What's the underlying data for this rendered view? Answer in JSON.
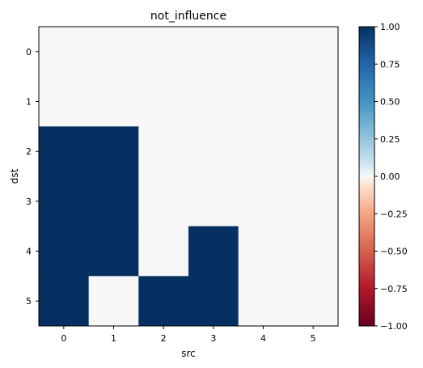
{
  "chart_data": {
    "type": "heatmap",
    "title": "not_influence",
    "xlabel": "src",
    "ylabel": "dst",
    "x_categories": [
      "0",
      "1",
      "2",
      "3",
      "4",
      "5"
    ],
    "y_categories": [
      "0",
      "1",
      "2",
      "3",
      "4",
      "5"
    ],
    "values": [
      [
        0,
        0,
        0,
        0,
        0,
        0
      ],
      [
        0,
        0,
        0,
        0,
        0,
        0
      ],
      [
        1,
        1,
        0,
        0,
        0,
        0
      ],
      [
        1,
        1,
        0,
        0,
        0,
        0
      ],
      [
        1,
        1,
        0,
        1,
        0,
        0
      ],
      [
        1,
        0,
        1,
        1,
        0,
        0
      ]
    ],
    "colormap": "RdBu",
    "vmin": -1.0,
    "vmax": 1.0,
    "colorbar_ticks": [
      "1.00",
      "0.75",
      "0.50",
      "0.25",
      "0.00",
      "−0.25",
      "−0.50",
      "−0.75",
      "−1.00"
    ],
    "colorbar_tick_values": [
      1.0,
      0.75,
      0.5,
      0.25,
      0.0,
      -0.25,
      -0.5,
      -0.75,
      -1.0
    ],
    "colors": {
      "high": "#053061",
      "mid": "#f7f7f7",
      "low": "#67001f"
    }
  }
}
